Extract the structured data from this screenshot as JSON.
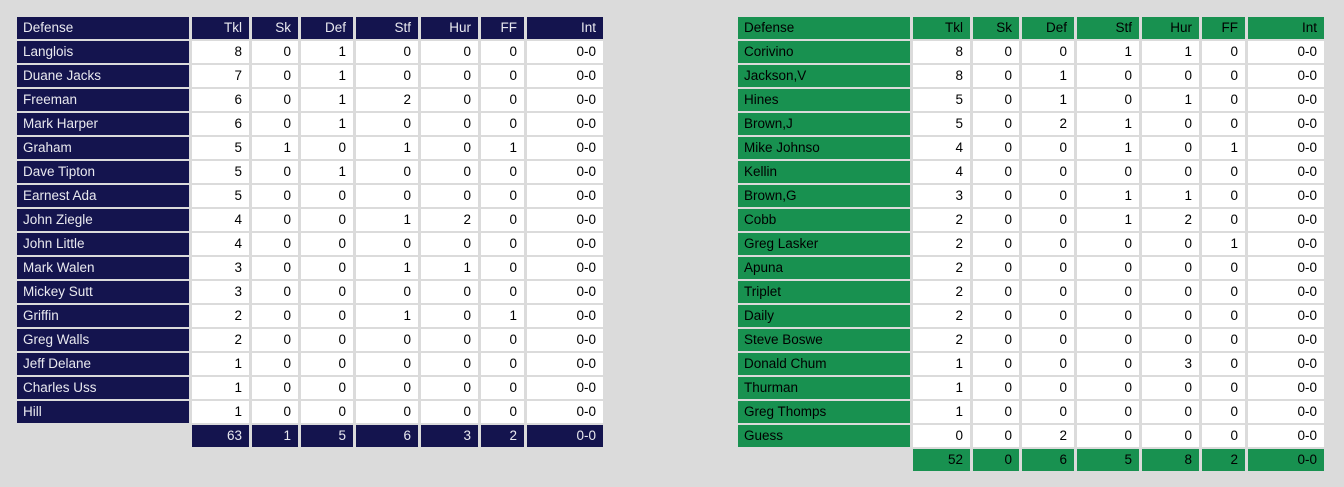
{
  "page": {
    "background": "#DBDBDB"
  },
  "tables": [
    {
      "id": "defense-table-navy",
      "accent": "#14144E",
      "accent_text": "#E9E9EF",
      "header": [
        "Defense",
        "Tkl",
        "Sk",
        "Def",
        "Stf",
        "Hur",
        "FF",
        "Int"
      ],
      "rows": [
        [
          "Langlois",
          "8",
          "0",
          "1",
          "0",
          "0",
          "0",
          "0-0"
        ],
        [
          "Duane Jacks",
          "7",
          "0",
          "1",
          "0",
          "0",
          "0",
          "0-0"
        ],
        [
          "Freeman",
          "6",
          "0",
          "1",
          "2",
          "0",
          "0",
          "0-0"
        ],
        [
          "Mark Harper",
          "6",
          "0",
          "1",
          "0",
          "0",
          "0",
          "0-0"
        ],
        [
          "Graham",
          "5",
          "1",
          "0",
          "1",
          "0",
          "1",
          "0-0"
        ],
        [
          "Dave Tipton",
          "5",
          "0",
          "1",
          "0",
          "0",
          "0",
          "0-0"
        ],
        [
          "Earnest Ada",
          "5",
          "0",
          "0",
          "0",
          "0",
          "0",
          "0-0"
        ],
        [
          "John Ziegle",
          "4",
          "0",
          "0",
          "1",
          "2",
          "0",
          "0-0"
        ],
        [
          "John Little",
          "4",
          "0",
          "0",
          "0",
          "0",
          "0",
          "0-0"
        ],
        [
          "Mark Walen",
          "3",
          "0",
          "0",
          "1",
          "1",
          "0",
          "0-0"
        ],
        [
          "Mickey Sutt",
          "3",
          "0",
          "0",
          "0",
          "0",
          "0",
          "0-0"
        ],
        [
          "Griffin",
          "2",
          "0",
          "0",
          "1",
          "0",
          "1",
          "0-0"
        ],
        [
          "Greg Walls",
          "2",
          "0",
          "0",
          "0",
          "0",
          "0",
          "0-0"
        ],
        [
          "Jeff Delane",
          "1",
          "0",
          "0",
          "0",
          "0",
          "0",
          "0-0"
        ],
        [
          "Charles Uss",
          "1",
          "0",
          "0",
          "0",
          "0",
          "0",
          "0-0"
        ],
        [
          "Hill",
          "1",
          "0",
          "0",
          "0",
          "0",
          "0",
          "0-0"
        ]
      ],
      "totals": [
        "63",
        "1",
        "5",
        "6",
        "3",
        "2",
        "0-0"
      ]
    },
    {
      "id": "defense-table-green",
      "accent": "#189150",
      "accent_text": "#000000",
      "header": [
        "Defense",
        "Tkl",
        "Sk",
        "Def",
        "Stf",
        "Hur",
        "FF",
        "Int"
      ],
      "rows": [
        [
          "Corivino",
          "8",
          "0",
          "0",
          "1",
          "1",
          "0",
          "0-0"
        ],
        [
          "Jackson,V",
          "8",
          "0",
          "1",
          "0",
          "0",
          "0",
          "0-0"
        ],
        [
          "Hines",
          "5",
          "0",
          "1",
          "0",
          "1",
          "0",
          "0-0"
        ],
        [
          "Brown,J",
          "5",
          "0",
          "2",
          "1",
          "0",
          "0",
          "0-0"
        ],
        [
          "Mike Johnso",
          "4",
          "0",
          "0",
          "1",
          "0",
          "1",
          "0-0"
        ],
        [
          "Kellin",
          "4",
          "0",
          "0",
          "0",
          "0",
          "0",
          "0-0"
        ],
        [
          "Brown,G",
          "3",
          "0",
          "0",
          "1",
          "1",
          "0",
          "0-0"
        ],
        [
          "Cobb",
          "2",
          "0",
          "0",
          "1",
          "2",
          "0",
          "0-0"
        ],
        [
          "Greg Lasker",
          "2",
          "0",
          "0",
          "0",
          "0",
          "1",
          "0-0"
        ],
        [
          "Apuna",
          "2",
          "0",
          "0",
          "0",
          "0",
          "0",
          "0-0"
        ],
        [
          "Triplet",
          "2",
          "0",
          "0",
          "0",
          "0",
          "0",
          "0-0"
        ],
        [
          "Daily",
          "2",
          "0",
          "0",
          "0",
          "0",
          "0",
          "0-0"
        ],
        [
          "Steve Boswe",
          "2",
          "0",
          "0",
          "0",
          "0",
          "0",
          "0-0"
        ],
        [
          "Donald Chum",
          "1",
          "0",
          "0",
          "0",
          "3",
          "0",
          "0-0"
        ],
        [
          "Thurman",
          "1",
          "0",
          "0",
          "0",
          "0",
          "0",
          "0-0"
        ],
        [
          "Greg Thomps",
          "1",
          "0",
          "0",
          "0",
          "0",
          "0",
          "0-0"
        ],
        [
          "Guess",
          "0",
          "0",
          "2",
          "0",
          "0",
          "0",
          "0-0"
        ]
      ],
      "totals": [
        "52",
        "0",
        "6",
        "5",
        "8",
        "2",
        "0-0"
      ]
    }
  ]
}
